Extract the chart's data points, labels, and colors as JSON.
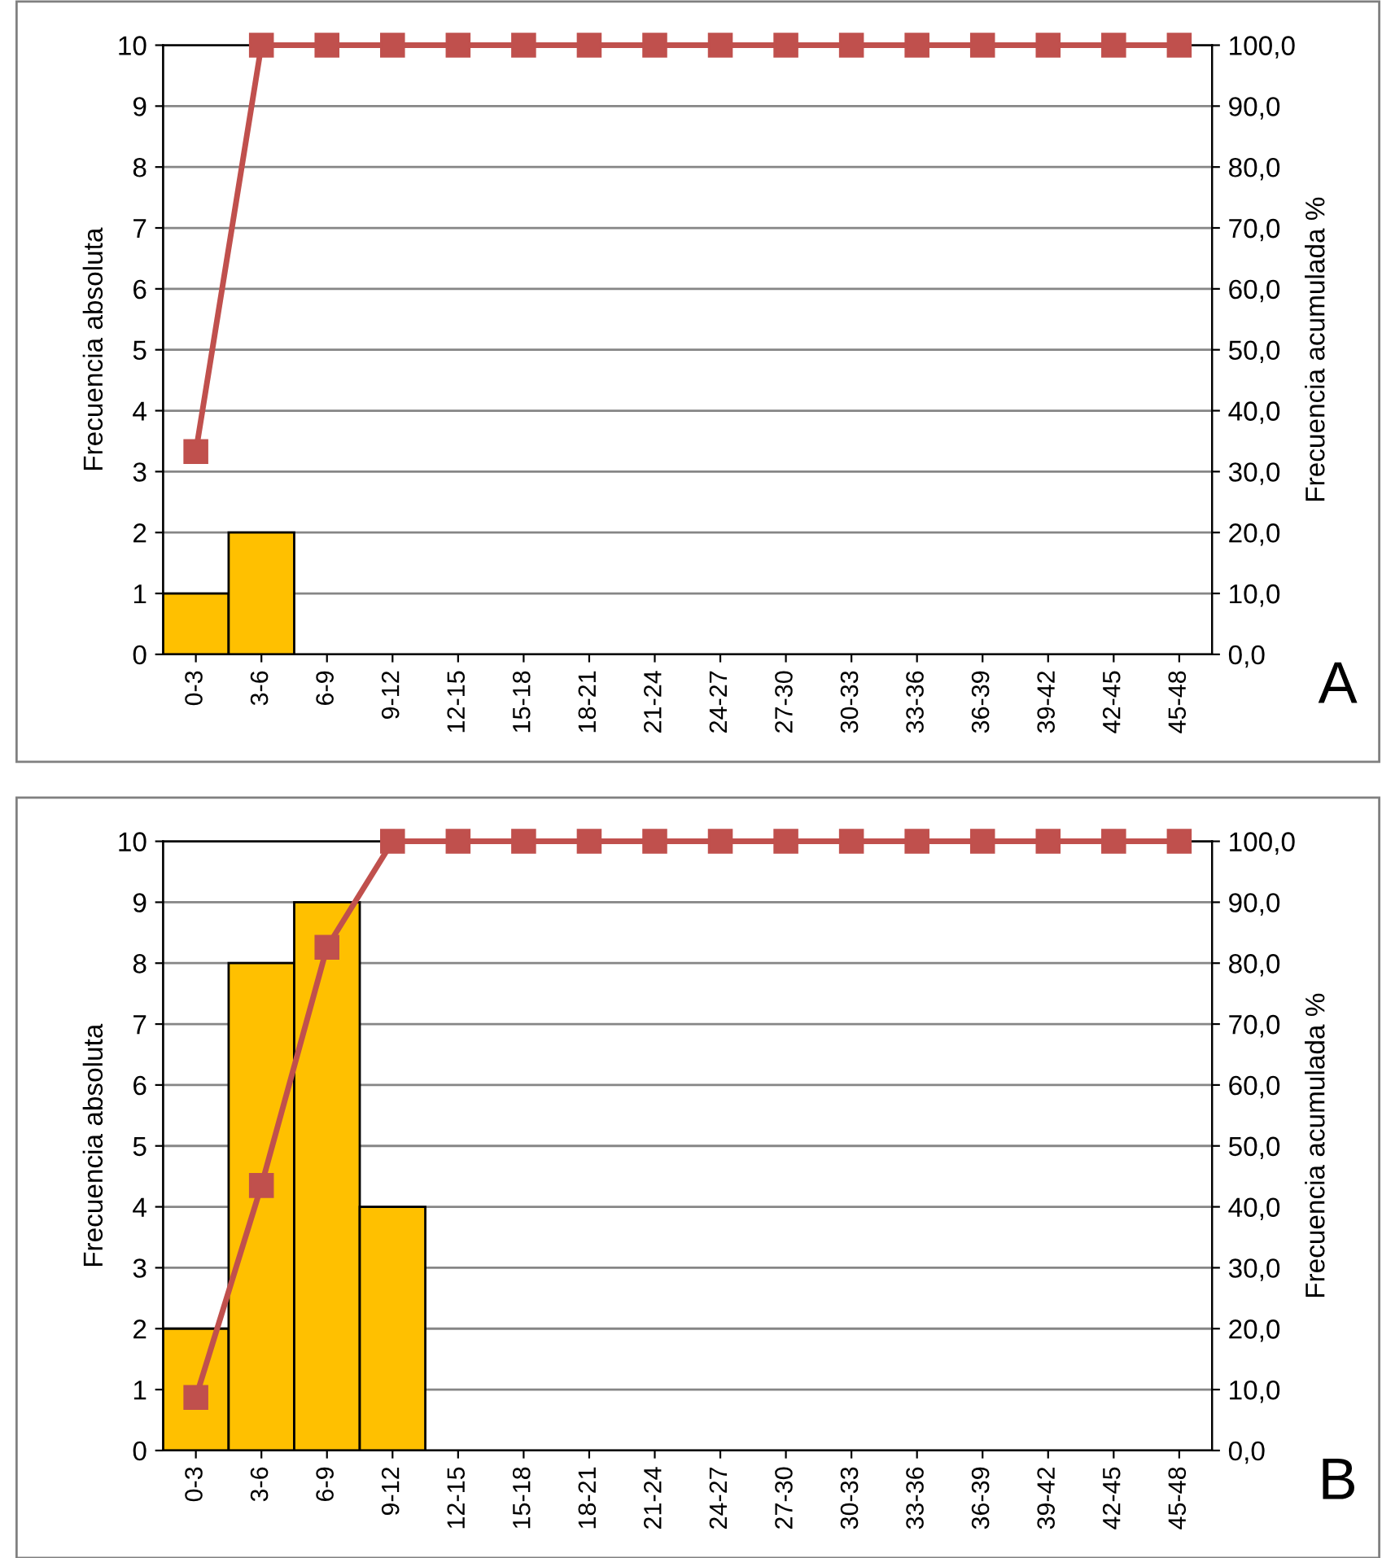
{
  "chart_data": [
    {
      "type": "bar",
      "ylabel": "Frecuencia absoluta",
      "y2label": "Frecuencia acumulada %",
      "categories": [
        "0-3",
        "3-6",
        "6-9",
        "9-12",
        "12-15",
        "15-18",
        "18-21",
        "21-24",
        "24-27",
        "27-30",
        "30-33",
        "33-36",
        "36-39",
        "39-42",
        "42-45",
        "45-48"
      ],
      "series": [
        {
          "color": "#ffc000",
          "values": [
            1,
            2,
            null,
            null,
            null,
            null,
            null,
            null,
            null,
            null,
            null,
            null,
            null,
            null,
            null,
            null
          ]
        },
        {
          "type": "line",
          "axis": "y2",
          "color": "#c0504d",
          "marker": "square",
          "line_style": "solid",
          "values": [
            33.3,
            100,
            100,
            100,
            100,
            100,
            100,
            100,
            100,
            100,
            100,
            100,
            100,
            100,
            100,
            100
          ]
        }
      ],
      "ylim": [
        0,
        10
      ],
      "yticks": [
        0,
        1,
        2,
        3,
        4,
        5,
        6,
        7,
        8,
        9,
        10
      ],
      "y2lim": [
        0,
        100
      ],
      "y2ticks": [
        {
          "value": 0,
          "label": "0,0"
        },
        {
          "value": 10,
          "label": "10,0"
        },
        {
          "value": 20,
          "label": "20,0"
        },
        {
          "value": 30,
          "label": "30,0"
        },
        {
          "value": 40,
          "label": "40,0"
        },
        {
          "value": 50,
          "label": "50,0"
        },
        {
          "value": 60,
          "label": "60,0"
        },
        {
          "value": 70,
          "label": "70,0"
        },
        {
          "value": 80,
          "label": "80,0"
        },
        {
          "value": 90,
          "label": "90,0"
        },
        {
          "value": 100,
          "label": "100,0"
        }
      ],
      "grid": "y",
      "legend": false,
      "annotations": [
        "A"
      ]
    },
    {
      "type": "bar",
      "ylabel": "Frecuencia absoluta",
      "y2label": "Frecuencia acumulada %",
      "categories": [
        "0-3",
        "3-6",
        "6-9",
        "9-12",
        "12-15",
        "15-18",
        "18-21",
        "21-24",
        "24-27",
        "27-30",
        "30-33",
        "33-36",
        "36-39",
        "39-42",
        "42-45",
        "45-48"
      ],
      "series": [
        {
          "color": "#ffc000",
          "values": [
            2,
            8,
            9,
            4,
            null,
            null,
            null,
            null,
            null,
            null,
            null,
            null,
            null,
            null,
            null,
            null
          ]
        },
        {
          "type": "line",
          "axis": "y2",
          "color": "#c0504d",
          "marker": "square",
          "line_style": "solid",
          "values": [
            8.7,
            43.5,
            82.6,
            100,
            100,
            100,
            100,
            100,
            100,
            100,
            100,
            100,
            100,
            100,
            100,
            100
          ]
        }
      ],
      "ylim": [
        0,
        10
      ],
      "yticks": [
        0,
        1,
        2,
        3,
        4,
        5,
        6,
        7,
        8,
        9,
        10
      ],
      "y2lim": [
        0,
        100
      ],
      "y2ticks": [
        {
          "value": 0,
          "label": "0,0"
        },
        {
          "value": 10,
          "label": "10,0"
        },
        {
          "value": 20,
          "label": "20,0"
        },
        {
          "value": 30,
          "label": "30,0"
        },
        {
          "value": 40,
          "label": "40,0"
        },
        {
          "value": 50,
          "label": "50,0"
        },
        {
          "value": 60,
          "label": "60,0"
        },
        {
          "value": 70,
          "label": "70,0"
        },
        {
          "value": 80,
          "label": "80,0"
        },
        {
          "value": 90,
          "label": "90,0"
        },
        {
          "value": 100,
          "label": "100,0"
        }
      ],
      "grid": "y",
      "legend": false,
      "annotations": [
        "B"
      ]
    }
  ]
}
